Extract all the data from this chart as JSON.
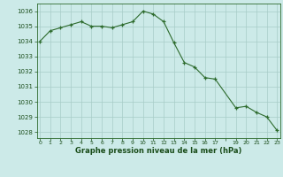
{
  "x": [
    0,
    1,
    2,
    3,
    4,
    5,
    6,
    7,
    8,
    9,
    10,
    11,
    12,
    13,
    14,
    15,
    16,
    17,
    19,
    20,
    21,
    22,
    23
  ],
  "y": [
    1034.0,
    1034.7,
    1034.9,
    1035.1,
    1035.3,
    1035.0,
    1035.0,
    1034.9,
    1035.1,
    1035.3,
    1036.0,
    1035.8,
    1035.3,
    1033.9,
    1032.6,
    1032.3,
    1031.6,
    1031.5,
    1029.6,
    1029.7,
    1029.3,
    1029.0,
    1028.1
  ],
  "line_color": "#2d6b2d",
  "marker_color": "#2d6b2d",
  "bg_color": "#cceae8",
  "grid_color": "#a8ccc8",
  "xlabel": "Graphe pression niveau de la mer (hPa)",
  "ylabel_ticks": [
    1028,
    1029,
    1030,
    1031,
    1032,
    1033,
    1034,
    1035,
    1036
  ],
  "xtick_labels": [
    "0",
    "1",
    "2",
    "3",
    "4",
    "5",
    "6",
    "7",
    "8",
    "9",
    "10",
    "11",
    "12",
    "13",
    "14",
    "15",
    "16",
    "17",
    "",
    "19",
    "20",
    "21",
    "22",
    "23"
  ],
  "xlim": [
    -0.3,
    23.3
  ],
  "ylim": [
    1027.6,
    1036.5
  ],
  "tick_color": "#1a4d1a",
  "font_color": "#1a4d1a",
  "figsize": [
    3.2,
    2.0
  ],
  "dpi": 100
}
